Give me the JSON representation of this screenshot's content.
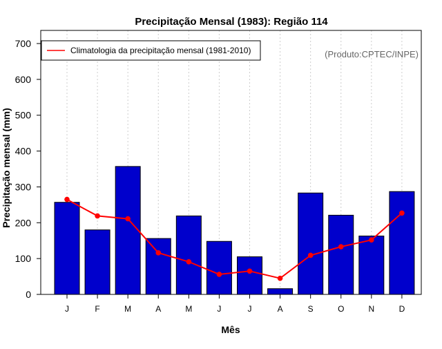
{
  "chart_data": {
    "type": "bar",
    "title": "Precipitação Mensal (1983): Região 114",
    "xlabel": "Mês",
    "ylabel": "Precipitação mensal (mm)",
    "ylim": [
      0,
      700
    ],
    "yticks": [
      0,
      100,
      200,
      300,
      400,
      500,
      600,
      700
    ],
    "grid": "vertical dotted",
    "categories": [
      "J",
      "F",
      "M",
      "A",
      "M",
      "J",
      "J",
      "A",
      "S",
      "O",
      "N",
      "D"
    ],
    "series": [
      {
        "name": "Precipitação mensal (1983)",
        "type": "bar",
        "color": "#0000cc",
        "values": [
          257,
          180,
          357,
          156,
          219,
          148,
          105,
          16,
          283,
          221,
          163,
          287
        ]
      },
      {
        "name": "Climatologia da precipitação mensal (1981-2010)",
        "type": "line",
        "color": "#ff0000",
        "values": [
          265,
          219,
          211,
          116,
          91,
          56,
          65,
          45,
          109,
          133,
          152,
          227
        ]
      }
    ],
    "legend": {
      "position": "top-left",
      "entries": [
        "Climatologia da precipitação mensal (1981-2010)"
      ]
    },
    "annotation": "(Produto:CPTEC/INPE)"
  }
}
